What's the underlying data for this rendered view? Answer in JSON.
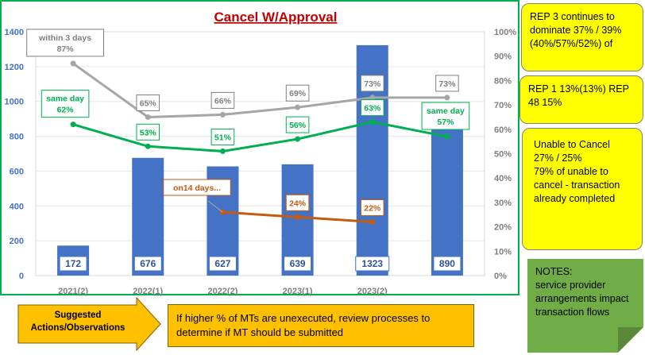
{
  "chart_data": {
    "type": "bar+line",
    "title": "Cancel W/Approval",
    "categories": [
      "2021(2)",
      "2022(1)",
      "2022(2)",
      "2023(1)",
      "2023(2)",
      ""
    ],
    "y_left": {
      "ylim": [
        0,
        1400
      ],
      "ticks": [
        0,
        200,
        400,
        600,
        800,
        1000,
        1200,
        1400
      ]
    },
    "y_right": {
      "ylim": [
        0,
        100
      ],
      "ticks": [
        "0%",
        "10%",
        "20%",
        "30%",
        "40%",
        "50%",
        "60%",
        "70%",
        "80%",
        "90%",
        "100%"
      ]
    },
    "bars": {
      "values": [
        172,
        676,
        627,
        639,
        1323,
        890
      ],
      "labels": [
        "172",
        "676",
        "627",
        "639",
        "1323",
        "890"
      ],
      "color": "#4472c4"
    },
    "series": [
      {
        "name": "within 3 days",
        "color": "#a6a6a6",
        "values": [
          87,
          65,
          66,
          69,
          73,
          73
        ],
        "labels": [
          "within  3 days\n87%",
          "65%",
          "66%",
          "69%",
          "73%",
          "73%"
        ]
      },
      {
        "name": "same day",
        "color": "#00b050",
        "values": [
          62,
          53,
          51,
          56,
          63,
          57
        ],
        "labels": [
          "same day\n62%",
          "53%",
          "51%",
          "56%",
          "63%",
          "same day\n57%"
        ]
      },
      {
        "name": "on 14 days",
        "color": "#c55a11",
        "values": [
          null,
          null,
          26,
          24,
          22,
          null
        ],
        "labels": [
          "",
          "",
          "",
          "24%",
          "22%",
          ""
        ],
        "callout": "on14 days..."
      }
    ]
  },
  "notes": {
    "rep3": "REP 3 continues to dominate 37% / 39% (40%/57%/52%) of",
    "rep1": "REP 1 13%(13%)   REP 48 15%",
    "unable_line1": "Unable to Cancel",
    "unable_line2": "27% / 25%",
    "unable_line3": "79% of unable to cancel - transaction already completed",
    "notes_title": "NOTES:",
    "notes_body": "service provider arrangements impact transaction flows"
  },
  "suggested_actions": {
    "label": "Suggested Actions/Observations",
    "text": "If higher % of MTs are unexecuted, review processes to determine if MT should be submitted"
  },
  "colors": {
    "plot_bg": "#ffffff",
    "border_green": "#00b050",
    "title": "#c00000",
    "axis_text": "#7f7f7f"
  }
}
